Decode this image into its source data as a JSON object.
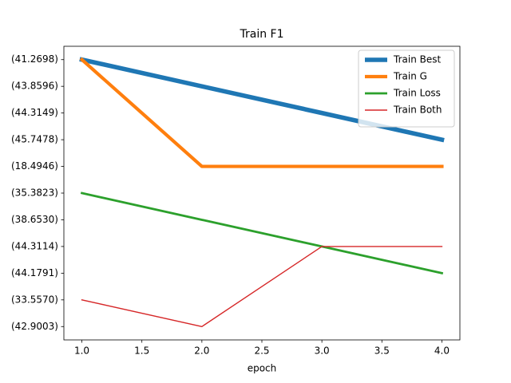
{
  "chart_data": {
    "type": "line",
    "title": "Train F1",
    "x_label": "epoch",
    "x": [
      1,
      2,
      3,
      4
    ],
    "xlim": [
      0.85,
      4.15
    ],
    "xticks": [
      {
        "value": 1,
        "label": "1.0"
      },
      1.5,
      {
        "value": 2,
        "label": "2.0"
      },
      2.5,
      {
        "value": 3,
        "label": "3.0"
      },
      3.5,
      {
        "value": 4,
        "label": "4.0"
      }
    ],
    "ycategories": [
      "(41.2698)",
      "(43.8596)",
      "(44.3149)",
      "(45.7478)",
      "(18.4946)",
      "(35.3823)",
      "(38.6530)",
      "(44.3114)",
      "(44.1791)",
      "(33.5570)",
      "(42.9003)"
    ],
    "legend": "upper right",
    "series": [
      {
        "name": "Train Best",
        "color": "#1f77b4",
        "linewidth": 4,
        "values": [
          "(41.2698)",
          "(43.8596)",
          "(44.3149)",
          "(45.7478)"
        ]
      },
      {
        "name": "Train G",
        "color": "#ff7f0e",
        "linewidth": 3,
        "values": [
          "(41.2698)",
          "(18.4946)",
          "(18.4946)",
          "(18.4946)"
        ]
      },
      {
        "name": "Train Loss",
        "color": "#2ca02c",
        "linewidth": 2,
        "values": [
          "(35.3823)",
          "(38.6530)",
          "(44.3114)",
          "(44.1791)"
        ]
      },
      {
        "name": "Train Both",
        "color": "#d62728",
        "linewidth": 1,
        "values": [
          "(33.5570)",
          "(42.9003)",
          "(44.3114)",
          "(44.3114)"
        ]
      }
    ]
  }
}
